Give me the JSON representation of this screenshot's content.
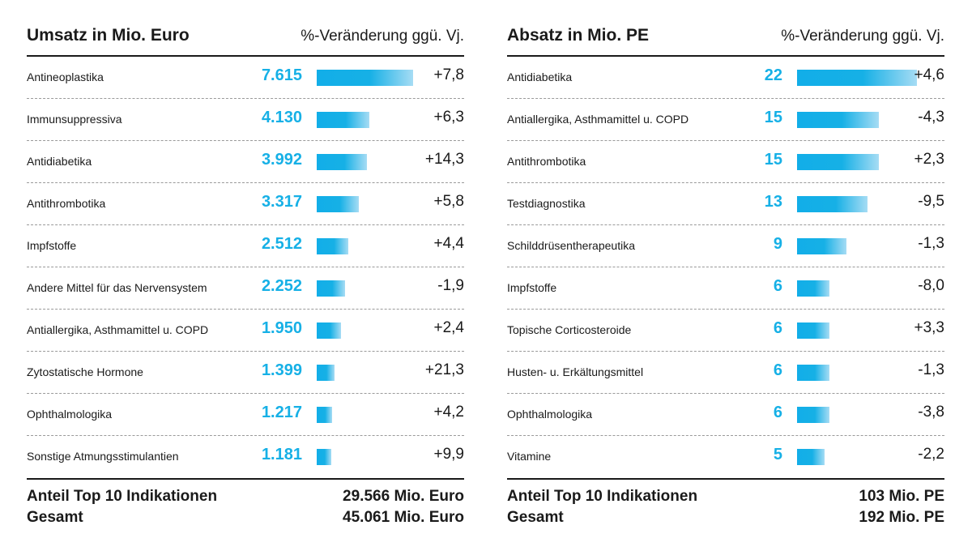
{
  "chart_data": [
    {
      "type": "bar",
      "title": "Umsatz in Mio. Euro",
      "change_header": "%-Veränderung ggü. Vj.",
      "categories": [
        "Antineoplastika",
        "Immunsuppressiva",
        "Antidiabetika",
        "Antithrombotika",
        "Impfstoffe",
        "Andere Mittel für das Nervensystem",
        "Antiallergika, Asthmamittel u. COPD",
        "Zytostatische Hormone",
        "Ophthalmologika",
        "Sonstige Atmungsstimulantien"
      ],
      "values": [
        7615,
        4130,
        3992,
        3317,
        2512,
        2252,
        1950,
        1399,
        1217,
        1181
      ],
      "value_labels": [
        "7.615",
        "4.130",
        "3.992",
        "3.317",
        "2.512",
        "2.252",
        "1.950",
        "1.399",
        "1.217",
        "1.181"
      ],
      "changes": [
        "+7,8",
        "+6,3",
        "+14,3",
        "+5,8",
        "+4,4",
        "-1,9",
        "+2,4",
        "+21,3",
        "+4,2",
        "+9,9"
      ],
      "footer": [
        {
          "label": "Anteil Top 10 Indikationen",
          "value": "29.566 Mio. Euro"
        },
        {
          "label": "Gesamt",
          "value": "45.061 Mio. Euro"
        }
      ],
      "bar_color": "#16b0e6",
      "value_color": "#16b0e6",
      "grid": false
    },
    {
      "type": "bar",
      "title": "Absatz in Mio. PE",
      "change_header": "%-Veränderung ggü. Vj.",
      "categories": [
        "Antidiabetika",
        "Antiallergika, Asthmamittel u. COPD",
        "Antithrombotika",
        "Testdiagnostika",
        "Schilddrüsentherapeutika",
        "Impfstoffe",
        "Topische Corticosteroide",
        "Husten- u. Erkältungsmittel",
        "Ophthalmologika",
        "Vitamine"
      ],
      "values": [
        22,
        15,
        15,
        13,
        9,
        6,
        6,
        6,
        6,
        5
      ],
      "value_labels": [
        "22",
        "15",
        "15",
        "13",
        "9",
        "6",
        "6",
        "6",
        "6",
        "5"
      ],
      "changes": [
        "+4,6",
        "-4,3",
        "+2,3",
        "-9,5",
        "-1,3",
        "-8,0",
        "+3,3",
        "-1,3",
        "-3,8",
        "-2,2"
      ],
      "footer": [
        {
          "label": "Anteil Top 10 Indikationen",
          "value": "103 Mio. PE"
        },
        {
          "label": "Gesamt",
          "value": "192 Mio. PE"
        }
      ],
      "bar_color": "#16b0e6",
      "value_color": "#16b0e6",
      "grid": false
    }
  ]
}
